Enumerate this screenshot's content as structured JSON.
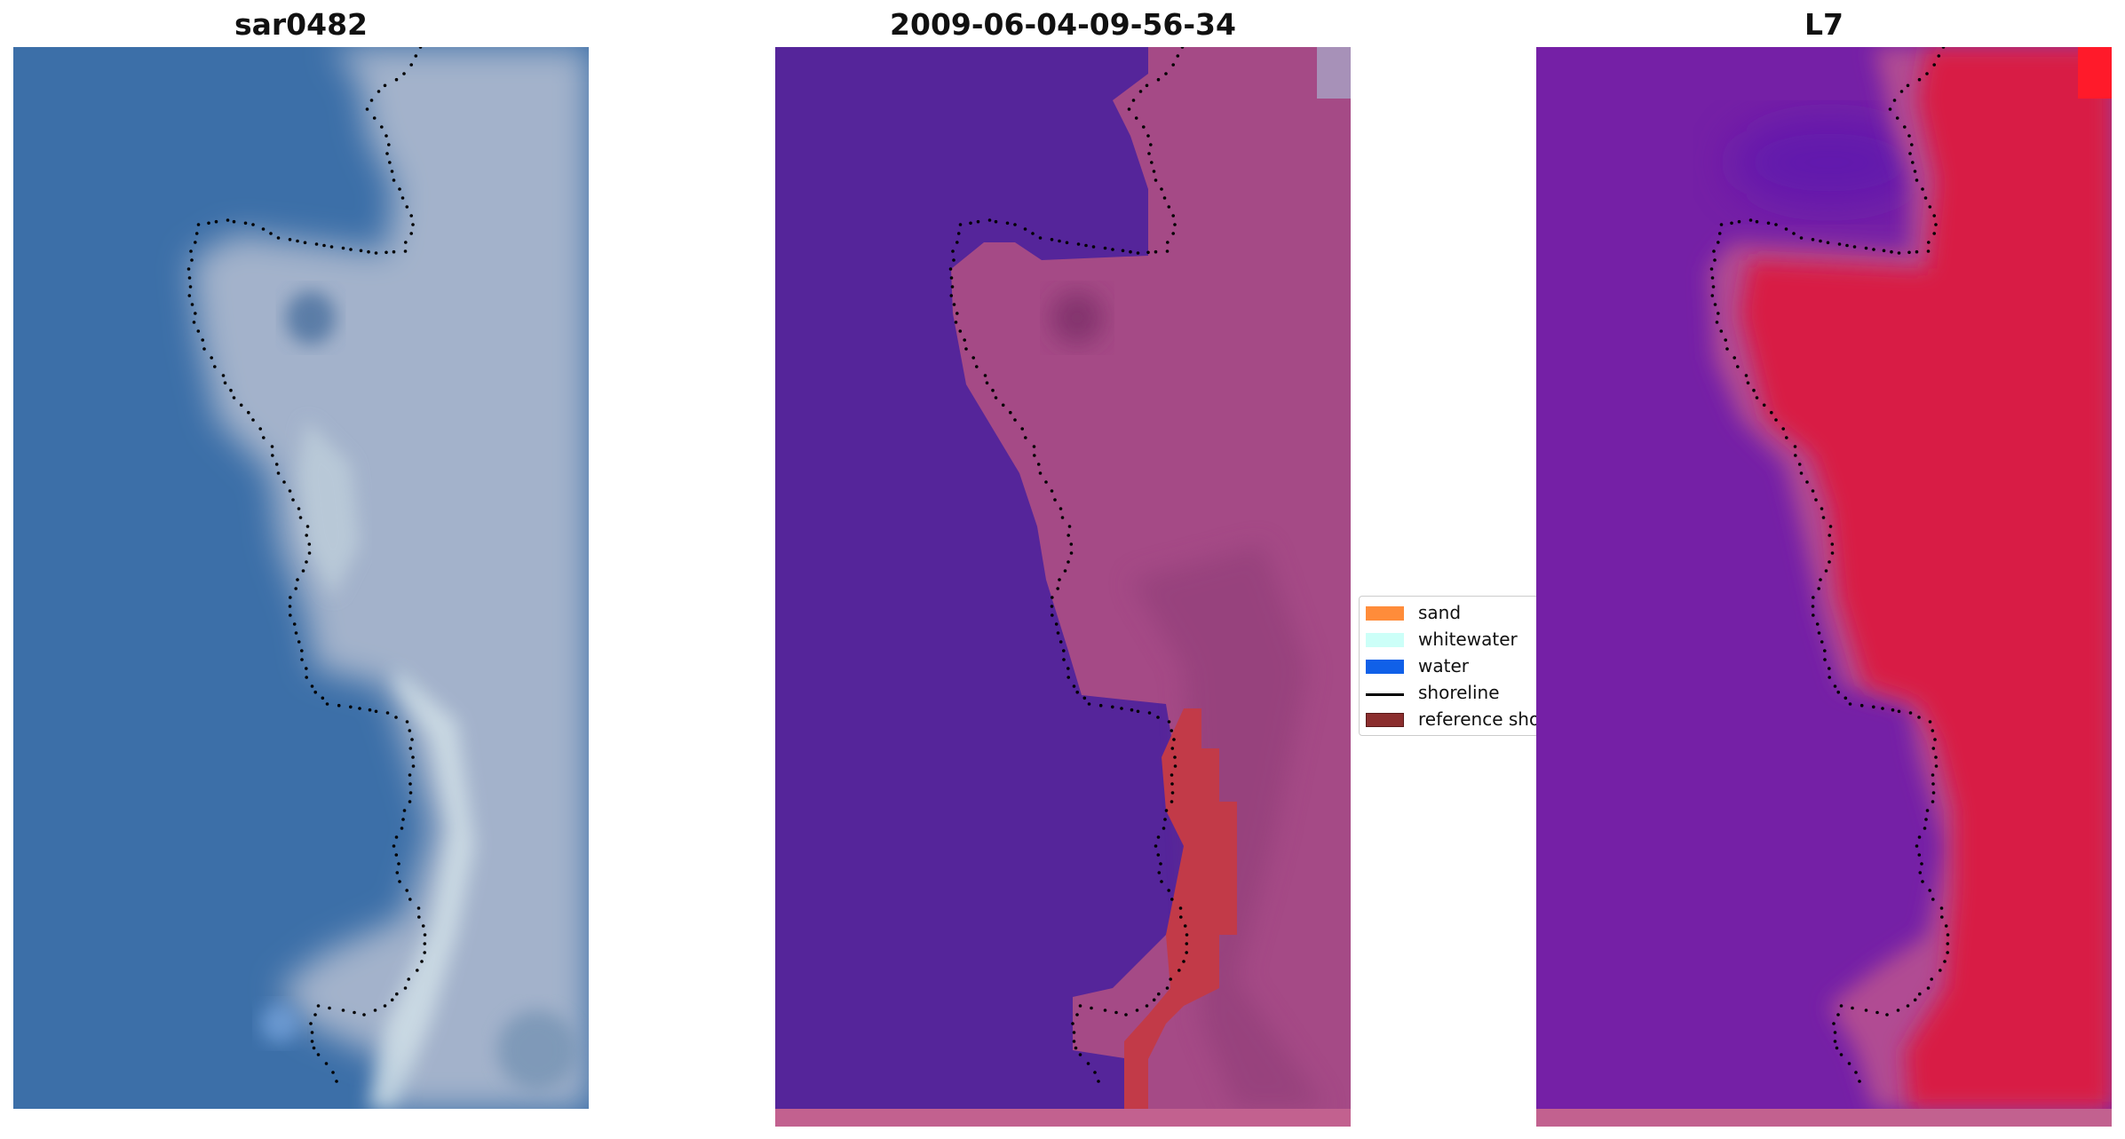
{
  "panels": [
    {
      "title": "sar0482"
    },
    {
      "title": "2009-06-04-09-56-34"
    },
    {
      "title": "L7"
    }
  ],
  "legend": {
    "items": [
      {
        "label": "sand",
        "color": "#ff8c3a",
        "kind": "patch"
      },
      {
        "label": "whitewater",
        "color": "#ccfff8",
        "kind": "patch"
      },
      {
        "label": "water",
        "color": "#1060e8",
        "kind": "patch"
      },
      {
        "label": "shoreline",
        "color": "#000000",
        "kind": "line"
      },
      {
        "label": "reference shoreline",
        "color": "#8b2e2e",
        "kind": "patch"
      }
    ]
  },
  "colors": {
    "water_rgb": "#3c6fa8",
    "land_rgb": "#a6b4cc",
    "classified_water": "#55259a",
    "classified_land": "#a54a86",
    "reference_band": "#c23a48",
    "mndwi_low": "#7520a6",
    "mndwi_high": "#d81a45",
    "bottom_strip": "#c2618f"
  }
}
